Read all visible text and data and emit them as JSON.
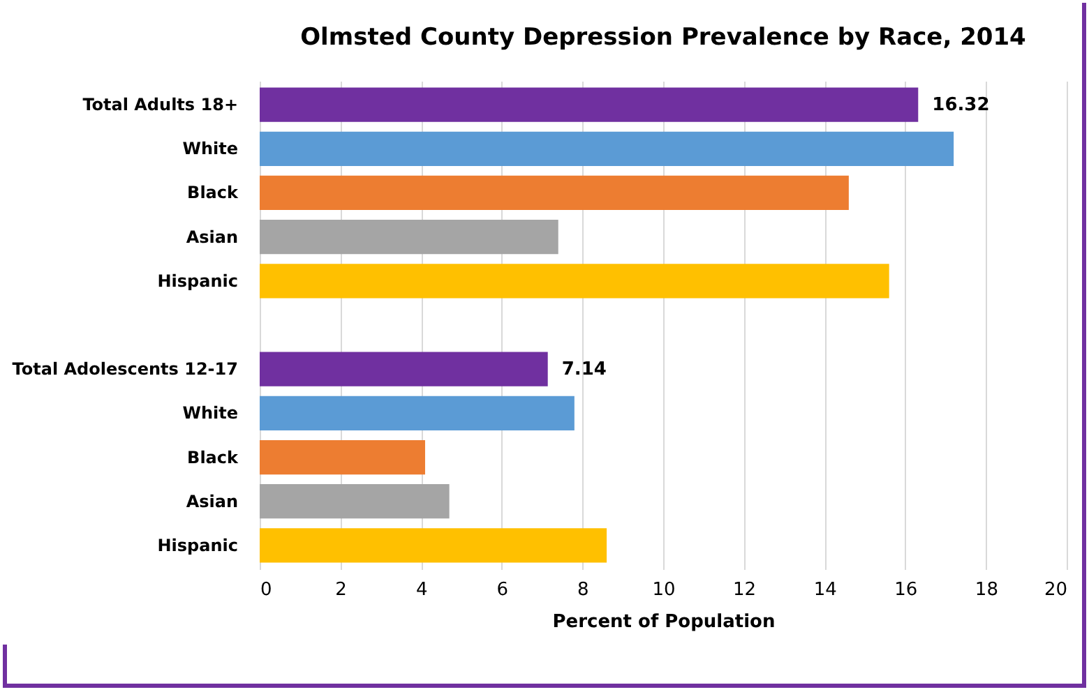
{
  "chart_data": {
    "type": "bar",
    "orientation": "horizontal",
    "title": "Olmsted County Depression Prevalence by Race, 2014",
    "xlabel": "Percent of Population",
    "categories": [
      "Total Adults 18+",
      "White",
      "Black",
      "Asian",
      "Hispanic",
      null,
      "Total Adolescents 12-17",
      "White",
      "Black",
      "Asian",
      "Hispanic"
    ],
    "values": [
      16.32,
      17.2,
      14.6,
      7.4,
      15.6,
      null,
      7.14,
      7.8,
      4.1,
      4.7,
      8.6
    ],
    "colors": [
      "#7030a0",
      "#5b9bd5",
      "#ed7d31",
      "#a5a5a5",
      "#ffc000",
      null,
      "#7030a0",
      "#5b9bd5",
      "#ed7d31",
      "#a5a5a5",
      "#ffc000"
    ],
    "value_labels": [
      "16.32",
      null,
      null,
      null,
      null,
      null,
      "7.14",
      null,
      null,
      null,
      null
    ],
    "xlim": [
      0,
      20
    ],
    "xticks": [
      0,
      2,
      4,
      6,
      8,
      10,
      12,
      14,
      16,
      18,
      20
    ],
    "grid": "x"
  }
}
